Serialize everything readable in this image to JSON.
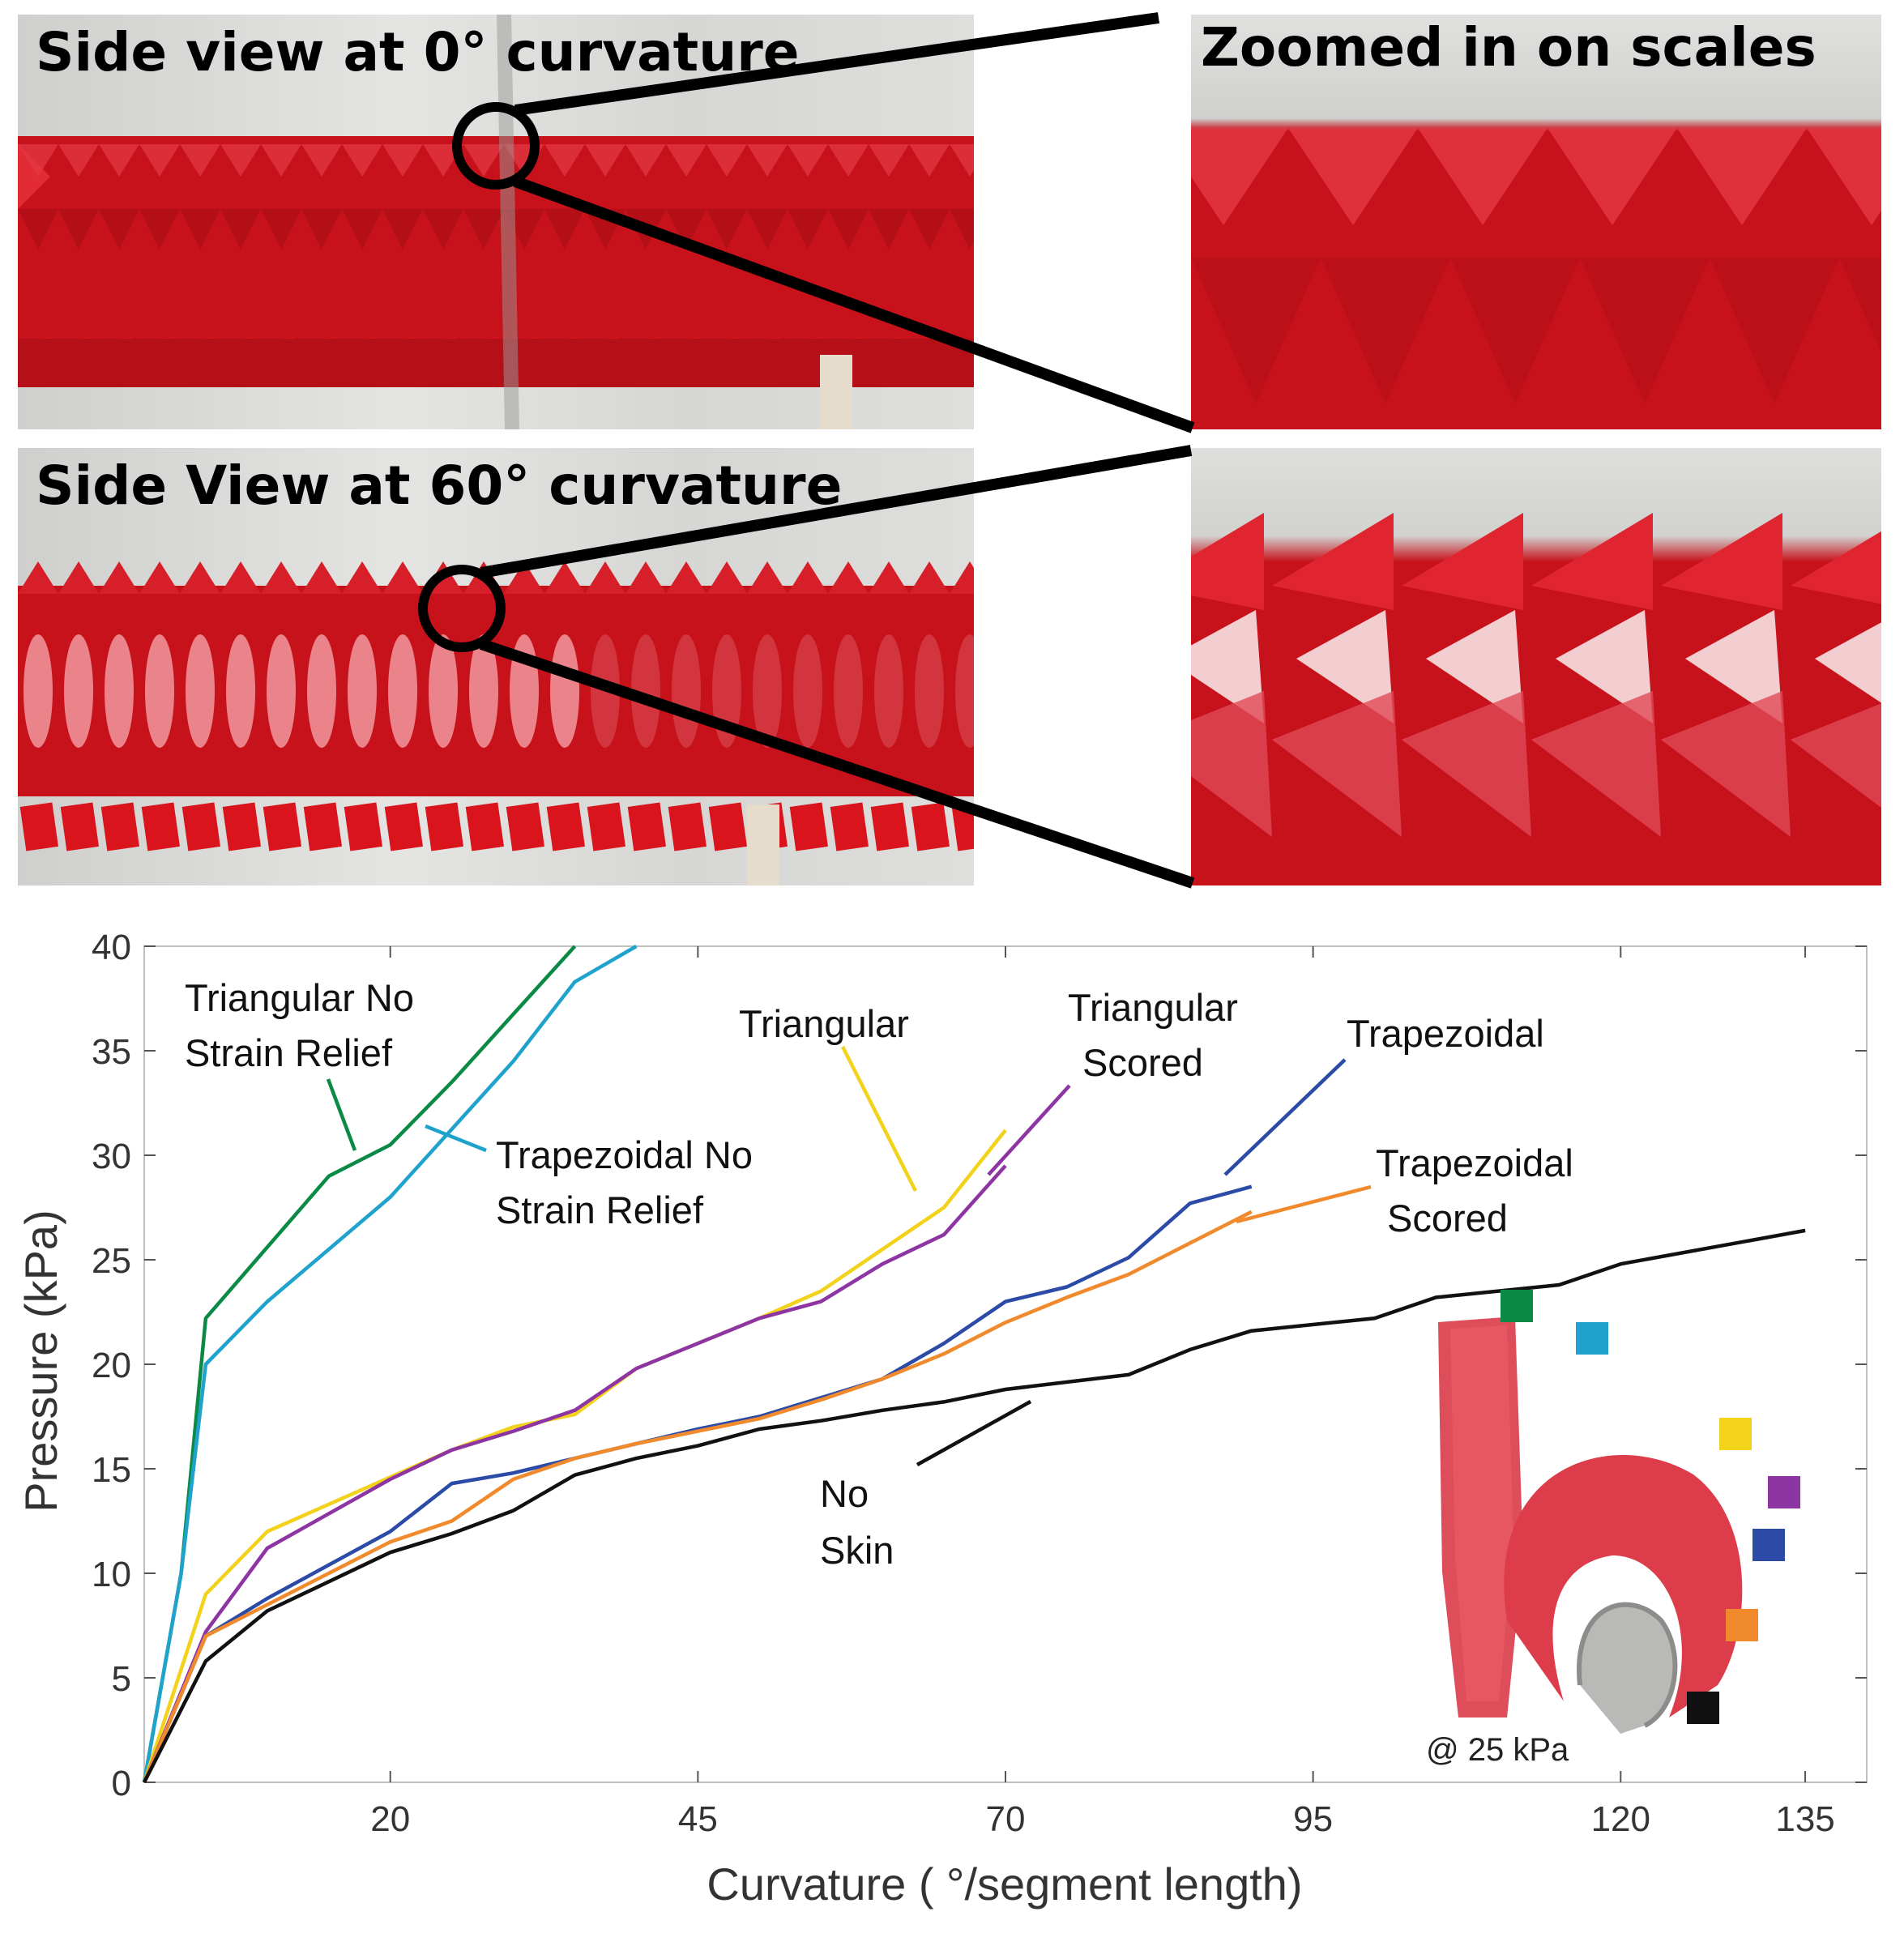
{
  "photos": {
    "top_left_title": "Side view at 0° curvature",
    "top_right_title": "Zoomed in on scales",
    "bottom_left_title": "Side View at 60° curvature"
  },
  "colors": {
    "scale_red": "#d9141c",
    "scale_light": "#f4a0a6",
    "background_wall": "#d8d8d6"
  },
  "chart_data": {
    "type": "line",
    "xlabel": "Curvature ( °/segment length)",
    "ylabel": "Pressure (kPa)",
    "xlim": [
      0,
      140
    ],
    "ylim": [
      0,
      40
    ],
    "xticks": [
      20,
      45,
      70,
      95,
      120,
      135
    ],
    "yticks": [
      0,
      5,
      10,
      15,
      20,
      25,
      30,
      35,
      40
    ],
    "grid": false,
    "series": [
      {
        "name": "Triangular No Strain Relief",
        "color": "#0a8a45",
        "points": [
          [
            0,
            0
          ],
          [
            3,
            10
          ],
          [
            5,
            22.2
          ],
          [
            15,
            29
          ],
          [
            20,
            30.5
          ],
          [
            25,
            33.5
          ],
          [
            35,
            40
          ]
        ]
      },
      {
        "name": "Trapezoidal No Strain Relief",
        "color": "#1fa3cc",
        "points": [
          [
            0,
            0
          ],
          [
            3,
            10
          ],
          [
            5,
            20
          ],
          [
            10,
            23
          ],
          [
            20,
            28
          ],
          [
            30,
            34.5
          ],
          [
            35,
            38.3
          ],
          [
            40,
            40
          ]
        ]
      },
      {
        "name": "Triangular",
        "color": "#f2d21b",
        "points": [
          [
            0,
            0
          ],
          [
            5,
            9
          ],
          [
            10,
            12
          ],
          [
            20,
            14.6
          ],
          [
            25,
            15.9
          ],
          [
            30,
            17
          ],
          [
            35,
            17.6
          ],
          [
            40,
            19.8
          ],
          [
            45,
            21
          ],
          [
            50,
            22.2
          ],
          [
            55,
            23.5
          ],
          [
            60,
            25.5
          ],
          [
            65,
            27.5
          ],
          [
            70,
            31.2
          ]
        ]
      },
      {
        "name": "Triangular Scored",
        "color": "#8e35a4",
        "points": [
          [
            0,
            0
          ],
          [
            5,
            7.2
          ],
          [
            10,
            11.2
          ],
          [
            20,
            14.5
          ],
          [
            25,
            15.9
          ],
          [
            30,
            16.8
          ],
          [
            35,
            17.8
          ],
          [
            40,
            19.8
          ],
          [
            45,
            21
          ],
          [
            50,
            22.2
          ],
          [
            55,
            23
          ],
          [
            60,
            24.8
          ],
          [
            65,
            26.2
          ],
          [
            70,
            29.5
          ]
        ]
      },
      {
        "name": "Trapezoidal",
        "color": "#2b4ba6",
        "points": [
          [
            0,
            0
          ],
          [
            5,
            7
          ],
          [
            10,
            8.8
          ],
          [
            20,
            12
          ],
          [
            25,
            14.3
          ],
          [
            30,
            14.8
          ],
          [
            35,
            15.5
          ],
          [
            40,
            16.2
          ],
          [
            45,
            16.9
          ],
          [
            50,
            17.5
          ],
          [
            55,
            18.4
          ],
          [
            60,
            19.3
          ],
          [
            65,
            21
          ],
          [
            70,
            23
          ],
          [
            75,
            23.7
          ],
          [
            80,
            25.1
          ],
          [
            85,
            27.7
          ],
          [
            90,
            28.5
          ]
        ]
      },
      {
        "name": "Trapezoidal Scored",
        "color": "#f08a2c",
        "points": [
          [
            0,
            0
          ],
          [
            5,
            7
          ],
          [
            10,
            8.5
          ],
          [
            20,
            11.5
          ],
          [
            25,
            12.5
          ],
          [
            30,
            14.5
          ],
          [
            35,
            15.5
          ],
          [
            40,
            16.2
          ],
          [
            45,
            16.8
          ],
          [
            50,
            17.4
          ],
          [
            55,
            18.3
          ],
          [
            60,
            19.3
          ],
          [
            65,
            20.5
          ],
          [
            70,
            22
          ],
          [
            75,
            23.2
          ],
          [
            80,
            24.3
          ],
          [
            85,
            25.8
          ],
          [
            90,
            27.3
          ]
        ]
      },
      {
        "name": "No Skin",
        "color": "#111111",
        "points": [
          [
            0,
            0
          ],
          [
            5,
            5.8
          ],
          [
            10,
            8.2
          ],
          [
            20,
            11
          ],
          [
            25,
            11.9
          ],
          [
            30,
            13
          ],
          [
            35,
            14.7
          ],
          [
            40,
            15.5
          ],
          [
            45,
            16.1
          ],
          [
            50,
            16.9
          ],
          [
            55,
            17.3
          ],
          [
            60,
            17.8
          ],
          [
            65,
            18.2
          ],
          [
            70,
            18.8
          ],
          [
            80,
            19.5
          ],
          [
            85,
            20.7
          ],
          [
            90,
            21.6
          ],
          [
            100,
            22.2
          ],
          [
            105,
            23.2
          ],
          [
            115,
            23.8
          ],
          [
            120,
            24.8
          ],
          [
            135,
            26.4
          ]
        ]
      }
    ],
    "annotations": {
      "tri_nsr_1": "Triangular No",
      "tri_nsr_2": "Strain Relief",
      "trap_nsr_1": "Trapezoidal No",
      "trap_nsr_2": "Strain Relief",
      "tri": "Triangular",
      "tri_sc_1": "Triangular",
      "tri_sc_2": "Scored",
      "trap": "Trapezoidal",
      "trap_sc_1": "Trapezoidal",
      "trap_sc_2": "Scored",
      "noskin_1": "No",
      "noskin_2": "Skin",
      "inset_caption": "@ 25 kPa"
    }
  }
}
